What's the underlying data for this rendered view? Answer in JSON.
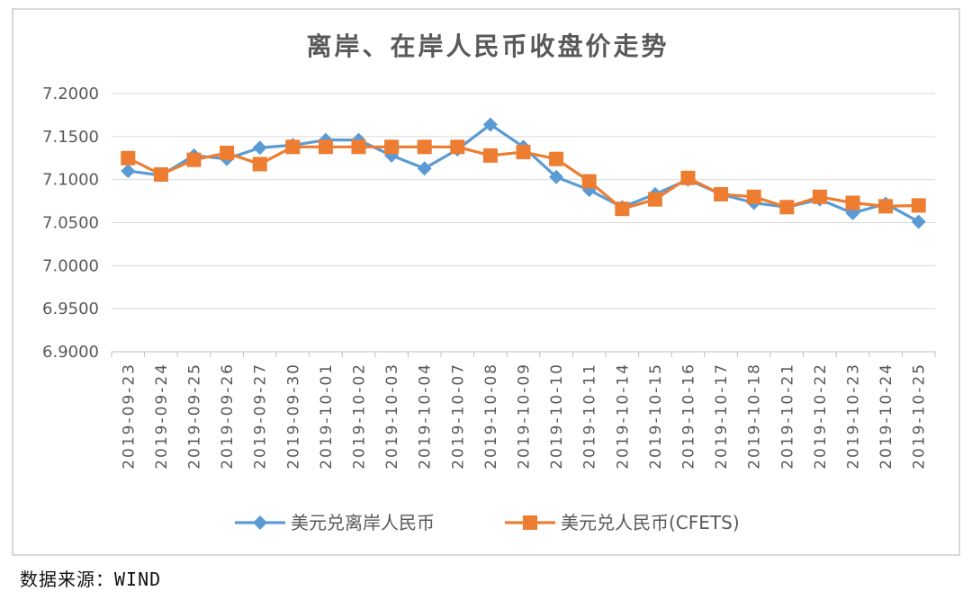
{
  "chart_data": {
    "type": "line",
    "title": "离岸、在岸人民币收盘价走势",
    "categories": [
      "2019-09-23",
      "2019-09-24",
      "2019-09-25",
      "2019-09-26",
      "2019-09-27",
      "2019-09-30",
      "2019-10-01",
      "2019-10-02",
      "2019-10-03",
      "2019-10-04",
      "2019-10-07",
      "2019-10-08",
      "2019-10-09",
      "2019-10-10",
      "2019-10-11",
      "2019-10-14",
      "2019-10-15",
      "2019-10-16",
      "2019-10-17",
      "2019-10-18",
      "2019-10-21",
      "2019-10-22",
      "2019-10-23",
      "2019-10-24",
      "2019-10-25"
    ],
    "ylim": [
      6.9,
      7.2
    ],
    "yticks": [
      "7.2000",
      "7.1500",
      "7.1000",
      "7.0500",
      "7.0000",
      "6.9500",
      "6.9000"
    ],
    "grid": true,
    "legend_position": "bottom",
    "series": [
      {
        "name": "美元兑离岸人民币",
        "color": "#5b9bd5",
        "marker": "diamond",
        "values": [
          7.11,
          7.105,
          7.128,
          7.124,
          7.137,
          7.14,
          7.146,
          7.146,
          7.128,
          7.113,
          7.135,
          7.164,
          7.138,
          7.103,
          7.088,
          7.068,
          7.083,
          7.1,
          7.083,
          7.073,
          7.068,
          7.077,
          7.061,
          7.072,
          7.051
        ]
      },
      {
        "name": "美元兑人民币(CFETS)",
        "color": "#ed7d31",
        "marker": "square",
        "values": [
          7.125,
          7.106,
          7.123,
          7.131,
          7.118,
          7.138,
          7.138,
          7.138,
          7.138,
          7.138,
          7.138,
          7.128,
          7.132,
          7.124,
          7.098,
          7.066,
          7.077,
          7.102,
          7.083,
          7.08,
          7.068,
          7.08,
          7.073,
          7.069,
          7.07
        ]
      }
    ]
  },
  "source_note": "数据来源：WIND"
}
